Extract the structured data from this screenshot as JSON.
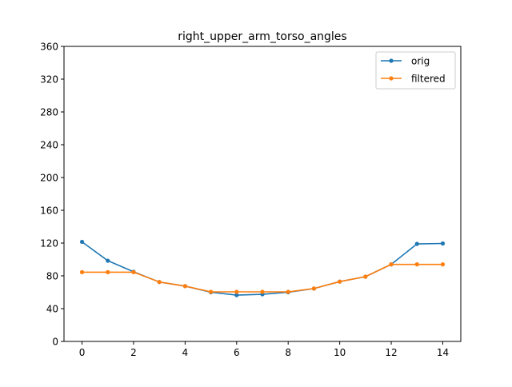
{
  "chart_data": {
    "type": "line",
    "title": "right_upper_arm_torso_angles",
    "xlabel": "",
    "ylabel": "",
    "xlim": [
      -0.7,
      14.7
    ],
    "ylim": [
      0,
      360
    ],
    "x_ticks": [
      0,
      2,
      4,
      6,
      8,
      10,
      12,
      14
    ],
    "y_ticks": [
      0,
      40,
      80,
      120,
      160,
      200,
      240,
      280,
      320,
      360
    ],
    "grid": false,
    "legend_position": "top-right",
    "x": [
      0,
      1,
      2,
      3,
      4,
      5,
      6,
      7,
      8,
      9,
      10,
      11,
      12,
      13,
      14
    ],
    "series": [
      {
        "name": "orig",
        "color": "#1f77b4",
        "values": [
          121.5,
          98.5,
          85,
          72.5,
          67.5,
          60,
          56.5,
          57.5,
          60,
          64.5,
          73,
          79,
          94,
          119,
          119.5
        ]
      },
      {
        "name": "filtered",
        "color": "#ff7f0e",
        "values": [
          84.5,
          84.5,
          84.5,
          72.5,
          67.5,
          60.5,
          60.5,
          60.5,
          60.5,
          64.5,
          73,
          79,
          94,
          94,
          94
        ]
      }
    ]
  }
}
